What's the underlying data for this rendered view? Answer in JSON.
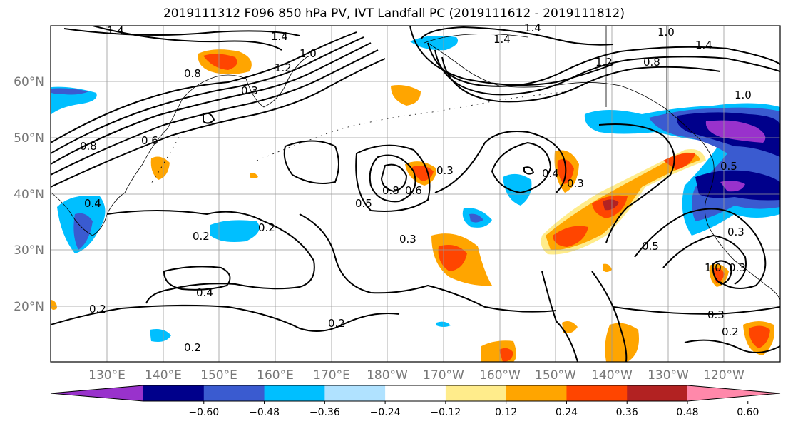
{
  "title": "2019111312 F096 850 hPa PV, IVT Landfall PC (2019111612 - 2019111812)",
  "latitude_labels": [
    "60°N",
    "50°N",
    "40°N",
    "30°N",
    "20°N"
  ],
  "longitude_labels": [
    "130°E",
    "140°E",
    "150°E",
    "160°E",
    "170°E",
    "180°W",
    "170°W",
    "160°W",
    "150°W",
    "140°W",
    "130°W",
    "120°W"
  ],
  "colorbar": {
    "ticks": [
      "−0.60",
      "−0.48",
      "−0.36",
      "−0.24",
      "−0.12",
      "0.12",
      "0.24",
      "0.36",
      "0.48",
      "0.60"
    ],
    "colors": [
      "#9932cc",
      "#00008b",
      "#3a5bd0",
      "#00bfff",
      "#b0e2ff",
      "#ffffff",
      "#ffec8b",
      "#ffa500",
      "#ff4500",
      "#b22222",
      "#ff88aa"
    ]
  },
  "contour_labels": [
    "1.4",
    "1.4",
    "1.0",
    "0.8",
    "1.2",
    "1.4",
    "1.4",
    "1.0",
    "1.4",
    "1.2",
    "0.8",
    "1.0",
    "0.8",
    "0.6",
    "0.3",
    "0.5",
    "0.8",
    "0.6",
    "0.3",
    "0.4",
    "0.3",
    "0.5",
    "0.2",
    "0.2",
    "0.3",
    "0.5",
    "0.3",
    "0.4",
    "0.2",
    "0.2",
    "0.2",
    "0.3",
    "0.2",
    "0.4",
    "0.3",
    "1.0"
  ]
}
